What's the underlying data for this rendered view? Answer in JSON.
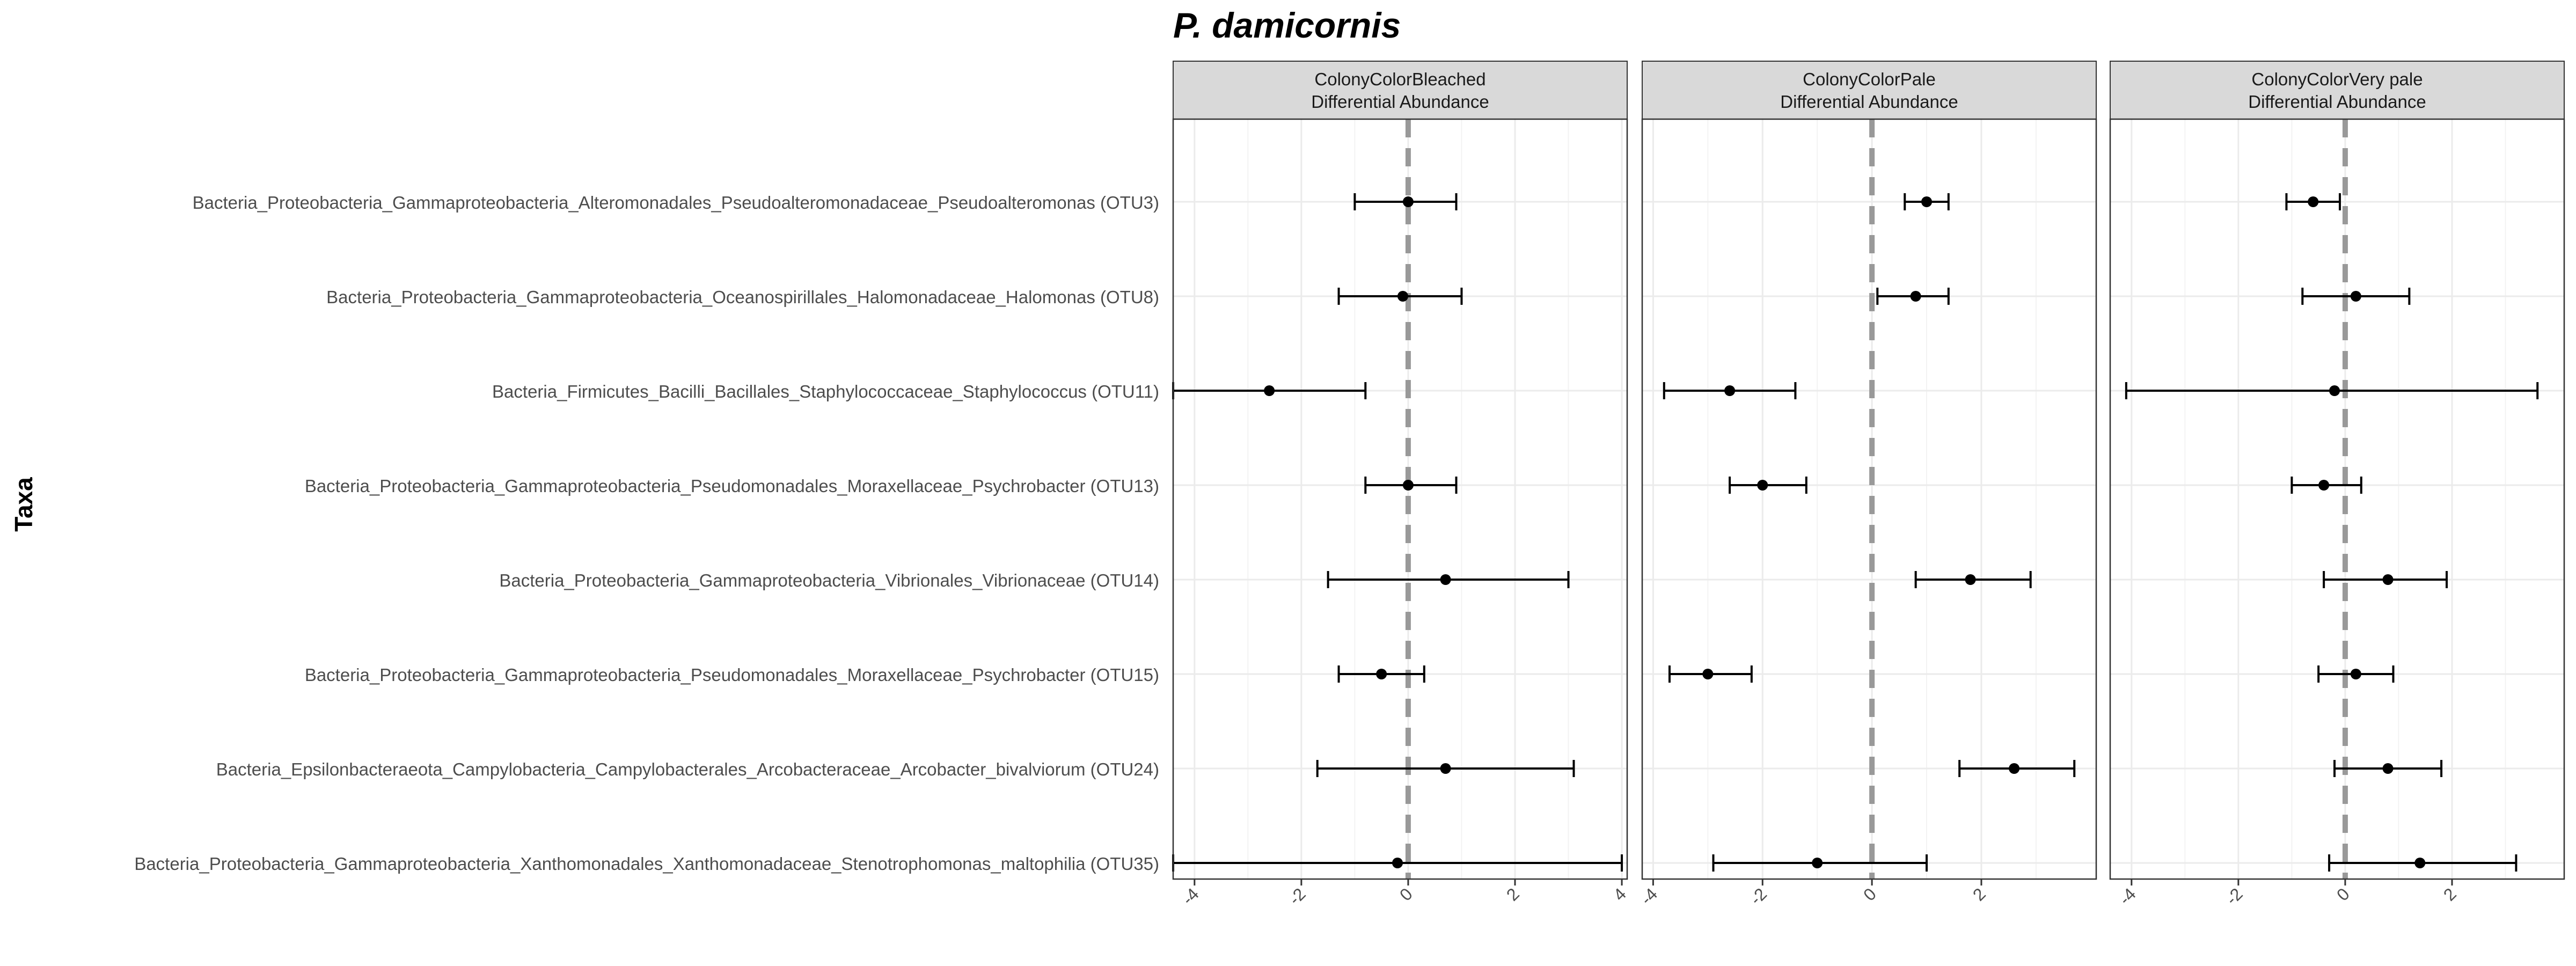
{
  "chart_data": {
    "type": "forest",
    "title": "P. damicornis",
    "ylabel": "Taxa",
    "xlabel": "",
    "taxa": [
      "Bacteria_Proteobacteria_Gammaproteobacteria_Alteromonadales_Pseudoalteromonadaceae_Pseudoalteromonas (OTU3)",
      "Bacteria_Proteobacteria_Gammaproteobacteria_Oceanospirillales_Halomonadaceae_Halomonas (OTU8)",
      "Bacteria_Firmicutes_Bacilli_Bacillales_Staphylococcaceae_Staphylococcus (OTU11)",
      "Bacteria_Proteobacteria_Gammaproteobacteria_Pseudomonadales_Moraxellaceae_Psychrobacter (OTU13)",
      "Bacteria_Proteobacteria_Gammaproteobacteria_Vibrionales_Vibrionaceae (OTU14)",
      "Bacteria_Proteobacteria_Gammaproteobacteria_Pseudomonadales_Moraxellaceae_Psychrobacter (OTU15)",
      "Bacteria_Epsilonbacteraeota_Campylobacteria_Campylobacterales_Arcobacteraceae_Arcobacter_bivalviorum (OTU24)",
      "Bacteria_Proteobacteria_Gammaproteobacteria_Xanthomonadales_Xanthomonadaceae_Stenotrophomonas_maltophilia (OTU35)"
    ],
    "panels": [
      {
        "strip_line1": "ColonyColorBleached",
        "strip_line2": "Differential Abundance",
        "xlim": [
          -4.4,
          4.1
        ],
        "xticks": [
          -4,
          -2,
          0,
          2,
          4
        ],
        "tick_labels": [
          "-4",
          "-2",
          "0",
          "2",
          "4"
        ],
        "estimates": [
          0.0,
          -0.1,
          -2.6,
          0.0,
          0.7,
          -0.5,
          0.7,
          -0.2
        ],
        "lower": [
          -1.0,
          -1.3,
          -4.4,
          -0.8,
          -1.5,
          -1.3,
          -1.7,
          -4.4
        ],
        "upper": [
          0.9,
          1.0,
          -0.8,
          0.9,
          3.0,
          0.3,
          3.1,
          4.0
        ]
      },
      {
        "strip_line1": "ColonyColorPale",
        "strip_line2": "Differential Abundance",
        "xlim": [
          -4.2,
          4.1
        ],
        "xticks": [
          -4,
          -2,
          0,
          2
        ],
        "tick_labels": [
          "-4",
          "-2",
          "0",
          "2"
        ],
        "estimates": [
          1.0,
          0.8,
          -2.6,
          -2.0,
          1.8,
          -3.0,
          2.6,
          -1.0
        ],
        "lower": [
          0.6,
          0.1,
          -3.8,
          -2.6,
          0.8,
          -3.7,
          1.6,
          -2.9
        ],
        "upper": [
          1.4,
          1.4,
          -1.4,
          -1.2,
          2.9,
          -2.2,
          3.7,
          1.0
        ]
      },
      {
        "strip_line1": "ColonyColorVery pale",
        "strip_line2": "Differential Abundance",
        "xlim": [
          -4.4,
          4.1
        ],
        "xticks": [
          -4,
          -2,
          0,
          2
        ],
        "tick_labels": [
          "-4",
          "-2",
          "0",
          "2"
        ],
        "estimates": [
          -0.6,
          0.2,
          -0.2,
          -0.4,
          0.8,
          0.2,
          0.8,
          1.4
        ],
        "lower": [
          -1.1,
          -0.8,
          -4.1,
          -1.0,
          -0.4,
          -0.5,
          -0.2,
          -0.3
        ],
        "upper": [
          -0.1,
          1.2,
          3.6,
          0.3,
          1.9,
          0.9,
          1.8,
          3.2
        ]
      }
    ],
    "zero_line": {
      "x": 0,
      "color": "#999999",
      "style": "dashed"
    },
    "colors": {
      "strip_bg": "#d9d9d9",
      "panel_border": "#333333",
      "grid": "#ebebeb",
      "point": "#000000"
    },
    "grid": true
  }
}
